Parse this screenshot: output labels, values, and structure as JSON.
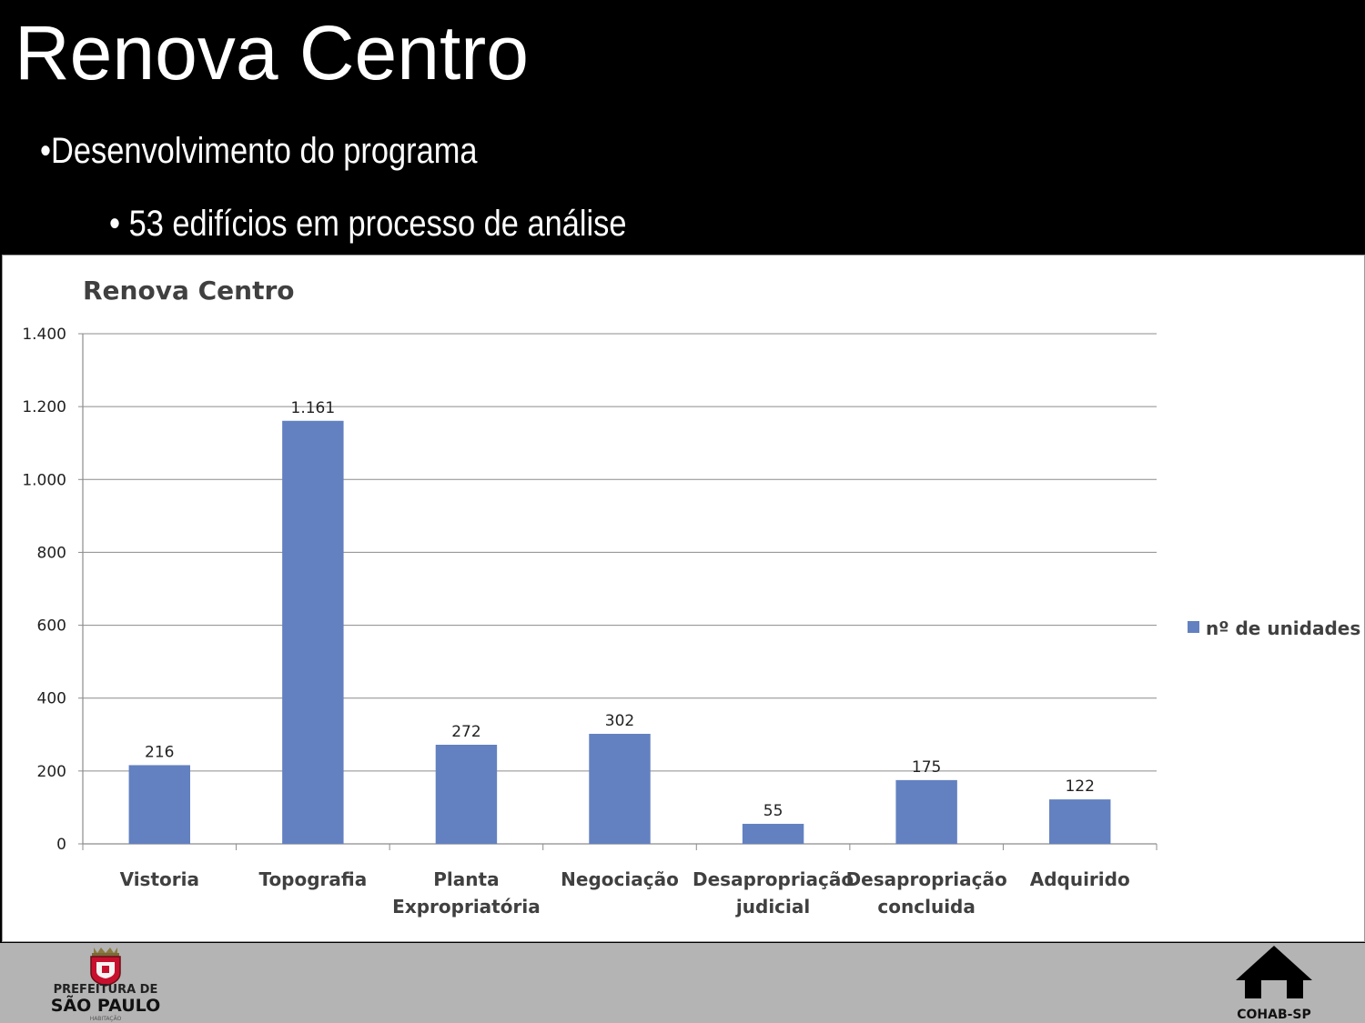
{
  "header": {
    "title": "Renova Centro",
    "bullet_1": "•Desenvolvimento do programa",
    "bullet_2": "• 53 edifícios em processo de análise"
  },
  "chart_data": {
    "type": "bar",
    "title": "Renova Centro",
    "categories": [
      [
        "Vistoria"
      ],
      [
        "Topografia"
      ],
      [
        "Planta",
        "Expropriatória"
      ],
      [
        "Negociação"
      ],
      [
        "Desapropriação",
        "judicial"
      ],
      [
        "Desapropriação",
        "concluida"
      ],
      [
        "Adquirido"
      ]
    ],
    "series": [
      {
        "name": "nº de unidades",
        "values": [
          216,
          1161,
          272,
          302,
          55,
          175,
          122
        ],
        "color": "#6381c0"
      }
    ],
    "value_labels": [
      "216",
      "1.161",
      "272",
      "302",
      "55",
      "175",
      "122"
    ],
    "ylim": [
      0,
      1400
    ],
    "yticks": [
      0,
      200,
      400,
      600,
      800,
      1000,
      1200,
      1400
    ],
    "ytick_labels": [
      "0",
      "200",
      "400",
      "600",
      "800",
      "1.000",
      "1.200",
      "1.400"
    ],
    "grid": true,
    "legend_position": "right"
  },
  "footer": {
    "left_logo_line1": "PREFEITURA DE",
    "left_logo_line2": "SÃO PAULO",
    "left_logo_line3": "HABITAÇÃO",
    "right_logo_text": "COHAB-SP"
  }
}
